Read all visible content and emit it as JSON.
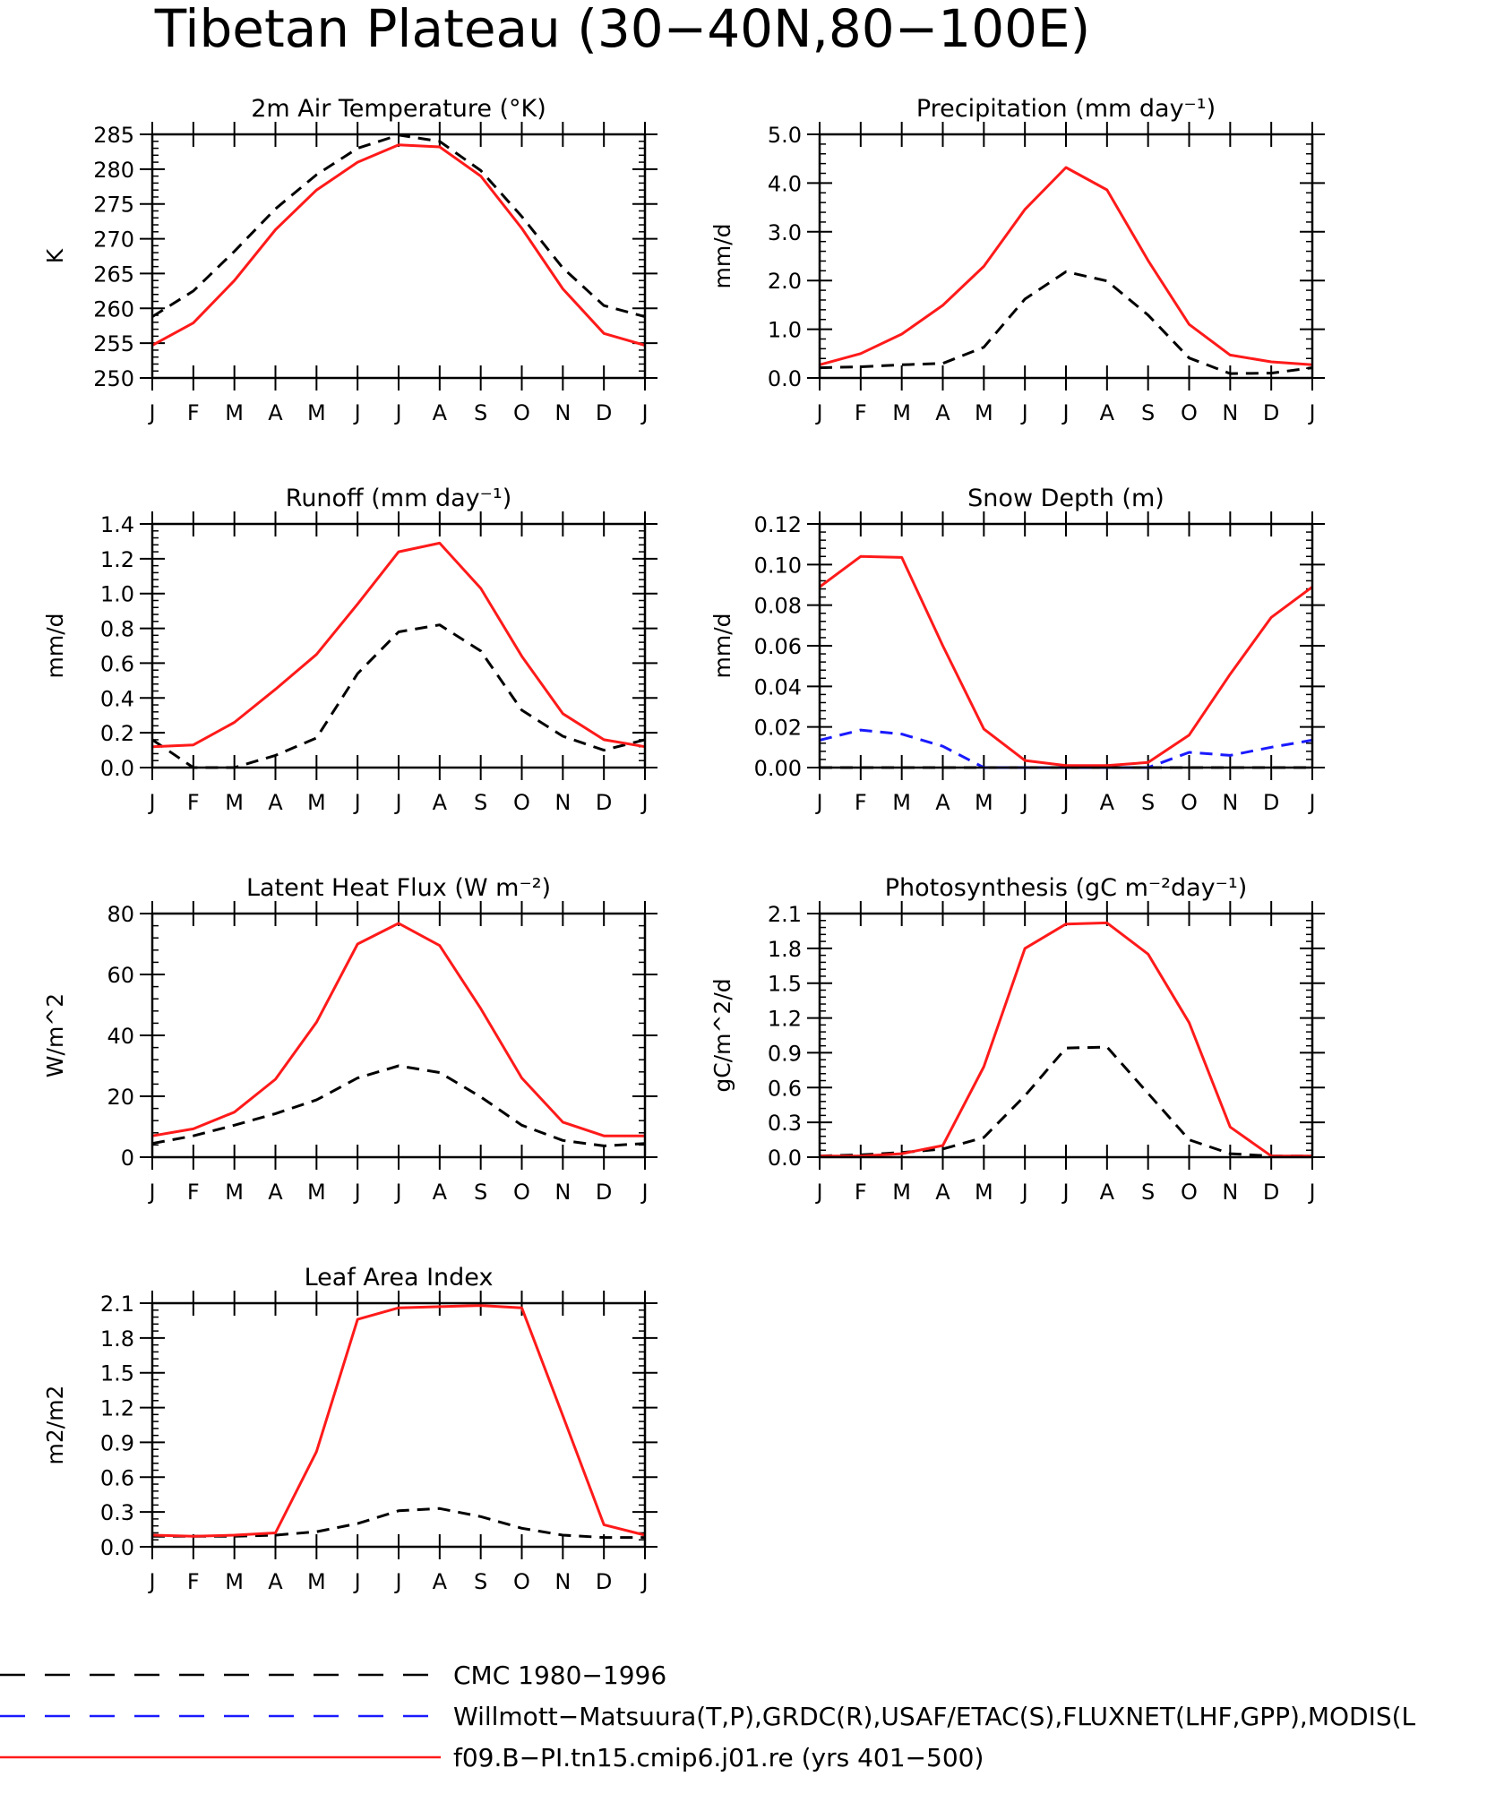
{
  "page_title": "Tibetan Plateau (30−40N,80−100E)",
  "colors": {
    "cmc": "#000000",
    "obs": "#1a1aff",
    "model": "#ff1a1a"
  },
  "months": [
    "J",
    "F",
    "M",
    "A",
    "M",
    "J",
    "J",
    "A",
    "S",
    "O",
    "N",
    "D",
    "J"
  ],
  "legend": [
    {
      "name": "CMC 1980−1996",
      "color": "#000000",
      "dash": true
    },
    {
      "name": "Willmott−Matsuura(T,P),GRDC(R),USAF/ETAC(S),FLUXNET(LHF,GPP),MODIS(L",
      "color": "#1a1aff",
      "dash": true
    },
    {
      "name": "f09.B−PI.tn15.cmip6.j01.re (yrs 401−500)",
      "color": "#ff1a1a",
      "dash": false
    }
  ],
  "chart_data": [
    {
      "type": "line",
      "title": "2m Air Temperature (°K)",
      "ylabel": "K",
      "ylim": [
        250,
        285
      ],
      "yticks": [
        250,
        255,
        260,
        265,
        270,
        275,
        280,
        285
      ],
      "yticklabels": [
        "250",
        "255",
        "260",
        "265",
        "270",
        "275",
        "280",
        "285"
      ],
      "categories": [
        "J",
        "F",
        "M",
        "A",
        "M",
        "J",
        "J",
        "A",
        "S",
        "O",
        "N",
        "D",
        "J"
      ],
      "series": [
        {
          "key": "cmc",
          "values": [
            258.8,
            262.5,
            268.2,
            274.3,
            279.2,
            283.0,
            284.9,
            284.0,
            279.8,
            273.2,
            265.8,
            260.4,
            258.8
          ]
        },
        {
          "key": "model",
          "values": [
            254.7,
            257.9,
            264.0,
            271.3,
            277.0,
            281.0,
            283.5,
            283.2,
            279.0,
            271.5,
            262.8,
            256.4,
            254.7
          ]
        }
      ]
    },
    {
      "type": "line",
      "title": "Precipitation (mm day⁻¹)",
      "ylabel": "mm/d",
      "ylim": [
        0,
        5
      ],
      "yticks": [
        0,
        1,
        2,
        3,
        4,
        5
      ],
      "yticklabels": [
        "0.0",
        "1.0",
        "2.0",
        "3.0",
        "4.0",
        "5.0"
      ],
      "categories": [
        "J",
        "F",
        "M",
        "A",
        "M",
        "J",
        "J",
        "A",
        "S",
        "O",
        "N",
        "D",
        "J"
      ],
      "series": [
        {
          "key": "cmc",
          "values": [
            0.21,
            0.23,
            0.27,
            0.3,
            0.63,
            1.62,
            2.18,
            1.99,
            1.29,
            0.41,
            0.09,
            0.1,
            0.21
          ]
        },
        {
          "key": "model",
          "values": [
            0.27,
            0.5,
            0.9,
            1.49,
            2.29,
            3.46,
            4.32,
            3.86,
            2.41,
            1.1,
            0.47,
            0.33,
            0.27
          ]
        }
      ]
    },
    {
      "type": "line",
      "title": "Runoff (mm day⁻¹)",
      "ylabel": "mm/d",
      "ylim": [
        0,
        1.4
      ],
      "yticks": [
        0,
        0.2,
        0.4,
        0.6,
        0.8,
        1.0,
        1.2,
        1.4
      ],
      "yticklabels": [
        "0.0",
        "0.2",
        "0.4",
        "0.6",
        "0.8",
        "1.0",
        "1.2",
        "1.4"
      ],
      "categories": [
        "J",
        "F",
        "M",
        "A",
        "M",
        "J",
        "J",
        "A",
        "S",
        "O",
        "N",
        "D",
        "J"
      ],
      "series": [
        {
          "key": "cmc",
          "values": [
            0.16,
            0.0,
            0.0,
            0.07,
            0.17,
            0.54,
            0.78,
            0.82,
            0.67,
            0.33,
            0.18,
            0.1,
            0.16
          ]
        },
        {
          "key": "model",
          "values": [
            0.12,
            0.13,
            0.26,
            0.45,
            0.65,
            0.94,
            1.24,
            1.29,
            1.03,
            0.64,
            0.31,
            0.16,
            0.12
          ]
        }
      ]
    },
    {
      "type": "line",
      "title": "Snow Depth (m)",
      "ylabel": "mm/d",
      "ylim": [
        0,
        0.12
      ],
      "yticks": [
        0,
        0.02,
        0.04,
        0.06,
        0.08,
        0.1,
        0.12
      ],
      "yticklabels": [
        "0.00",
        "0.02",
        "0.04",
        "0.06",
        "0.08",
        "0.10",
        "0.12"
      ],
      "categories": [
        "J",
        "F",
        "M",
        "A",
        "M",
        "J",
        "J",
        "A",
        "S",
        "O",
        "N",
        "D",
        "J"
      ],
      "series": [
        {
          "key": "cmc",
          "values": [
            0.0,
            0.0,
            0.0,
            0.0,
            0.0,
            0.0,
            0.0,
            0.0,
            0.0,
            0.0,
            0.0,
            0.0,
            0.0
          ]
        },
        {
          "key": "obs",
          "values": [
            0.0135,
            0.0185,
            0.0165,
            0.0105,
            0.0,
            0.0,
            0.0,
            0.0,
            0.0,
            0.0075,
            0.006,
            0.01,
            0.0135
          ]
        },
        {
          "key": "model",
          "values": [
            0.089,
            0.104,
            0.1035,
            0.06,
            0.019,
            0.0035,
            0.001,
            0.001,
            0.0025,
            0.016,
            0.046,
            0.074,
            0.089
          ]
        }
      ]
    },
    {
      "type": "line",
      "title": "Latent Heat Flux (W m⁻²)",
      "ylabel": "W/m^2",
      "ylim": [
        0,
        80
      ],
      "yticks": [
        0,
        20,
        40,
        60,
        80
      ],
      "yticklabels": [
        "0",
        "20",
        "40",
        "60",
        "80"
      ],
      "categories": [
        "J",
        "F",
        "M",
        "A",
        "M",
        "J",
        "J",
        "A",
        "S",
        "O",
        "N",
        "D",
        "J"
      ],
      "series": [
        {
          "key": "cmc",
          "values": [
            4.5,
            7.0,
            10.5,
            14.3,
            18.8,
            26.0,
            30.0,
            27.8,
            19.8,
            10.5,
            5.5,
            3.7,
            4.5
          ]
        },
        {
          "key": "model",
          "values": [
            7.0,
            9.3,
            14.8,
            25.6,
            44.3,
            70.0,
            76.8,
            69.5,
            48.8,
            26.0,
            11.5,
            7.0,
            7.0
          ]
        }
      ]
    },
    {
      "type": "line",
      "title": "Photosynthesis (gC m⁻²day⁻¹)",
      "ylabel": "gC/m^2/d",
      "ylim": [
        0,
        2.1
      ],
      "yticks": [
        0,
        0.3,
        0.6,
        0.9,
        1.2,
        1.5,
        1.8,
        2.1
      ],
      "yticklabels": [
        "0.0",
        "0.3",
        "0.6",
        "0.9",
        "1.2",
        "1.5",
        "1.8",
        "2.1"
      ],
      "categories": [
        "J",
        "F",
        "M",
        "A",
        "M",
        "J",
        "J",
        "A",
        "S",
        "O",
        "N",
        "D",
        "J"
      ],
      "series": [
        {
          "key": "cmc",
          "values": [
            0.01,
            0.02,
            0.04,
            0.07,
            0.17,
            0.53,
            0.94,
            0.95,
            0.55,
            0.15,
            0.03,
            0.01,
            0.01
          ]
        },
        {
          "key": "model",
          "values": [
            0.01,
            0.01,
            0.03,
            0.1,
            0.78,
            1.8,
            2.01,
            2.02,
            1.75,
            1.16,
            0.26,
            0.01,
            0.01
          ]
        }
      ]
    },
    {
      "type": "line",
      "title": "Leaf Area Index",
      "ylabel": "m2/m2",
      "ylim": [
        0,
        2.1
      ],
      "yticks": [
        0,
        0.3,
        0.6,
        0.9,
        1.2,
        1.5,
        1.8,
        2.1
      ],
      "yticklabels": [
        "0.0",
        "0.3",
        "0.6",
        "0.9",
        "1.2",
        "1.5",
        "1.8",
        "2.1"
      ],
      "categories": [
        "J",
        "F",
        "M",
        "A",
        "M",
        "J",
        "J",
        "A",
        "S",
        "O",
        "N",
        "D",
        "J"
      ],
      "series": [
        {
          "key": "cmc",
          "values": [
            0.09,
            0.09,
            0.09,
            0.1,
            0.13,
            0.2,
            0.31,
            0.33,
            0.26,
            0.16,
            0.1,
            0.08,
            0.08
          ]
        },
        {
          "key": "model",
          "values": [
            0.1,
            0.09,
            0.1,
            0.12,
            0.82,
            1.96,
            2.06,
            2.07,
            2.08,
            2.06,
            1.13,
            0.19,
            0.1
          ]
        }
      ]
    }
  ]
}
